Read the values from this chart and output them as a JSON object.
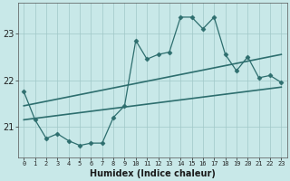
{
  "xlabel": "Humidex (Indice chaleur)",
  "bg_color": "#c8e8e8",
  "line_color": "#2d6e6e",
  "grid_color": "#b0d0d0",
  "x_data": [
    0,
    1,
    2,
    3,
    4,
    5,
    6,
    7,
    8,
    9,
    10,
    11,
    12,
    13,
    14,
    15,
    16,
    17,
    18,
    19,
    20,
    21,
    22,
    23
  ],
  "y_data": [
    21.75,
    21.15,
    20.75,
    20.85,
    20.7,
    20.6,
    20.65,
    20.65,
    21.2,
    21.45,
    22.85,
    22.45,
    22.55,
    22.6,
    23.35,
    23.35,
    23.1,
    23.35,
    22.55,
    22.2,
    22.5,
    22.05,
    22.1,
    21.95
  ],
  "trend1_x": [
    0,
    23
  ],
  "trend1_y": [
    21.45,
    22.55
  ],
  "trend2_x": [
    0,
    23
  ],
  "trend2_y": [
    21.15,
    21.85
  ],
  "ylim": [
    20.35,
    23.65
  ],
  "xlim": [
    -0.5,
    23.5
  ],
  "yticks": [
    21,
    22,
    23
  ],
  "xticks": [
    0,
    1,
    2,
    3,
    4,
    5,
    6,
    7,
    8,
    9,
    10,
    11,
    12,
    13,
    14,
    15,
    16,
    17,
    18,
    19,
    20,
    21,
    22,
    23
  ]
}
